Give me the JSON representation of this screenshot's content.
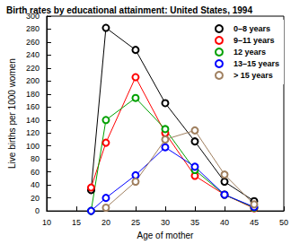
{
  "chart_data": {
    "type": "line",
    "title": "Birth rates by educational attainment: United States, 1994",
    "x_label": "Age of mother",
    "y_label": "Live births per 1000 women",
    "x": [
      17.5,
      20,
      25,
      30,
      35,
      40,
      45
    ],
    "series": [
      {
        "name": "0–8 years",
        "color": "#000000",
        "values": [
          32,
          282,
          248,
          166,
          107,
          45,
          15
        ]
      },
      {
        "name": "9–11 years",
        "color": "#ff0000",
        "values": [
          36,
          105,
          206,
          120,
          54,
          25,
          4
        ]
      },
      {
        "name": "12 years",
        "color": "#00a000",
        "values": [
          0,
          140,
          174,
          126,
          63,
          25,
          5
        ]
      },
      {
        "name": "13–15 years",
        "color": "#0000ff",
        "values": [
          0,
          20,
          55,
          98,
          68,
          25,
          6
        ]
      },
      {
        "name": "> 15 years",
        "color": "#a08060",
        "values": [
          null,
          5,
          45,
          110,
          124,
          56,
          10
        ]
      }
    ],
    "xlim": [
      10,
      50
    ],
    "xticks": [
      10,
      15,
      20,
      25,
      30,
      35,
      40,
      45,
      50
    ],
    "ylim": [
      0,
      300
    ],
    "yticks": [
      0,
      20,
      40,
      60,
      80,
      100,
      120,
      140,
      160,
      180,
      200,
      220,
      240,
      260,
      280,
      300
    ],
    "grid": false,
    "legend": "top-right",
    "marker": "circle"
  }
}
